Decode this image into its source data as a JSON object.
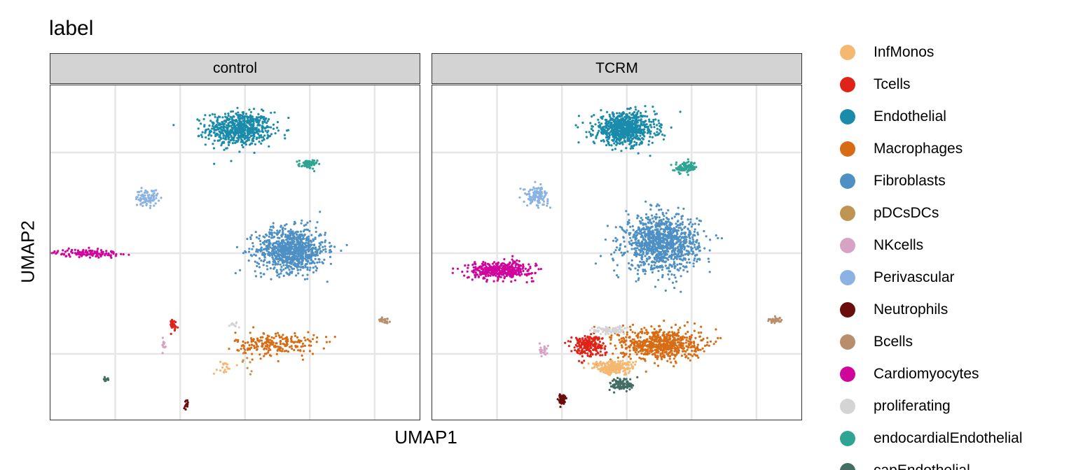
{
  "chart_data": {
    "type": "scatter",
    "title": "label",
    "xlabel": "UMAP1",
    "ylabel": "UMAP2",
    "xlim": [
      -10,
      10
    ],
    "ylim": [
      -10,
      10
    ],
    "grid": true,
    "legend_position": "right",
    "panels": [
      {
        "name": "control",
        "clusters": [
          {
            "label": "Endothelial",
            "cx": 0.2,
            "cy": 7.4,
            "sx": 1.6,
            "sy": 0.9,
            "n": 650
          },
          {
            "label": "endocardialEndothelial",
            "cx": 3.9,
            "cy": 5.3,
            "sx": 0.45,
            "sy": 0.25,
            "n": 60
          },
          {
            "label": "Fibroblasts",
            "cx": 3.0,
            "cy": 0.2,
            "sx": 1.7,
            "sy": 1.2,
            "n": 900
          },
          {
            "label": "Perivascular",
            "cx": -4.8,
            "cy": 3.3,
            "sx": 0.55,
            "sy": 0.45,
            "n": 90
          },
          {
            "label": "Cardiomyocytes",
            "cx": -8.0,
            "cy": 0.0,
            "sx": 1.6,
            "sy": 0.2,
            "n": 130
          },
          {
            "label": "Macrophages",
            "cx": 2.2,
            "cy": -5.4,
            "sx": 2.0,
            "sy": 0.65,
            "n": 220
          },
          {
            "label": "Tcells",
            "cx": -3.4,
            "cy": -4.3,
            "sx": 0.25,
            "sy": 0.35,
            "n": 30
          },
          {
            "label": "InfMonos",
            "cx": -0.7,
            "cy": -6.8,
            "sx": 0.5,
            "sy": 0.4,
            "n": 18
          },
          {
            "label": "proliferating",
            "cx": -0.1,
            "cy": -4.3,
            "sx": 0.4,
            "sy": 0.2,
            "n": 10
          },
          {
            "label": "NKcells",
            "cx": -3.9,
            "cy": -5.5,
            "sx": 0.15,
            "sy": 0.35,
            "n": 12
          },
          {
            "label": "capEndothelial",
            "cx": -7.0,
            "cy": -7.5,
            "sx": 0.15,
            "sy": 0.12,
            "n": 15
          },
          {
            "label": "Neutrophils",
            "cx": -2.6,
            "cy": -9.0,
            "sx": 0.12,
            "sy": 0.25,
            "n": 12
          },
          {
            "label": "Bcells",
            "cx": 8.0,
            "cy": -4.0,
            "sx": 0.3,
            "sy": 0.14,
            "n": 20
          },
          {
            "label": "pDCsDCs",
            "cx": 0.6,
            "cy": -6.5,
            "sx": 0.3,
            "sy": 0.5,
            "n": 8
          }
        ]
      },
      {
        "name": "TCRM",
        "clusters": [
          {
            "label": "Endothelial",
            "cx": 0.4,
            "cy": 7.4,
            "sx": 1.5,
            "sy": 0.85,
            "n": 800
          },
          {
            "label": "endocardialEndothelial",
            "cx": 3.7,
            "cy": 5.1,
            "sx": 0.55,
            "sy": 0.3,
            "n": 90
          },
          {
            "label": "Fibroblasts",
            "cx": 2.4,
            "cy": 0.6,
            "sx": 1.8,
            "sy": 1.5,
            "n": 1100
          },
          {
            "label": "Perivascular",
            "cx": -4.4,
            "cy": 3.4,
            "sx": 0.6,
            "sy": 0.5,
            "n": 120
          },
          {
            "label": "Cardiomyocytes",
            "cx": -6.3,
            "cy": -1.0,
            "sx": 1.6,
            "sy": 0.45,
            "n": 400
          },
          {
            "label": "Macrophages",
            "cx": 2.3,
            "cy": -5.4,
            "sx": 2.0,
            "sy": 0.85,
            "n": 650
          },
          {
            "label": "Tcells",
            "cx": -1.6,
            "cy": -5.5,
            "sx": 0.8,
            "sy": 0.6,
            "n": 220
          },
          {
            "label": "InfMonos",
            "cx": -0.2,
            "cy": -6.8,
            "sx": 1.0,
            "sy": 0.35,
            "n": 230
          },
          {
            "label": "proliferating",
            "cx": -0.5,
            "cy": -4.6,
            "sx": 0.8,
            "sy": 0.2,
            "n": 90
          },
          {
            "label": "NKcells",
            "cx": -4.0,
            "cy": -5.8,
            "sx": 0.25,
            "sy": 0.3,
            "n": 25
          },
          {
            "label": "capEndothelial",
            "cx": 0.3,
            "cy": -7.8,
            "sx": 0.6,
            "sy": 0.35,
            "n": 110
          },
          {
            "label": "Neutrophils",
            "cx": -3.0,
            "cy": -8.7,
            "sx": 0.2,
            "sy": 0.3,
            "n": 60
          },
          {
            "label": "Bcells",
            "cx": 8.5,
            "cy": -4.0,
            "sx": 0.35,
            "sy": 0.15,
            "n": 35
          }
        ]
      }
    ],
    "legend": [
      {
        "label": "InfMonos",
        "color": "#F4B870"
      },
      {
        "label": "Tcells",
        "color": "#E02318"
      },
      {
        "label": "Endothelial",
        "color": "#1A8BAA"
      },
      {
        "label": "Macrophages",
        "color": "#D86C14"
      },
      {
        "label": "Fibroblasts",
        "color": "#4E90C3"
      },
      {
        "label": "pDCsDCs",
        "color": "#BF9552"
      },
      {
        "label": "NKcells",
        "color": "#D7A3C5"
      },
      {
        "label": "Perivascular",
        "color": "#8AB3E3"
      },
      {
        "label": "Neutrophils",
        "color": "#6B0D0C"
      },
      {
        "label": "Bcells",
        "color": "#B88F6A"
      },
      {
        "label": "Cardiomyocytes",
        "color": "#D0059C"
      },
      {
        "label": "proliferating",
        "color": "#D4D4D4"
      },
      {
        "label": "endocardialEndothelial",
        "color": "#2EA592"
      },
      {
        "label": "capEndothelial",
        "color": "#426E63"
      }
    ]
  }
}
